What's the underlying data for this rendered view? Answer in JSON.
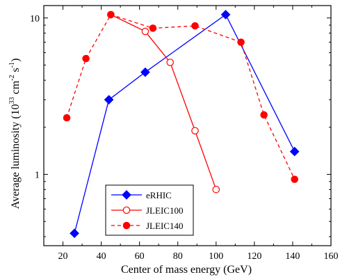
{
  "chart_data": {
    "type": "line",
    "xlabel": "Center of mass energy (GeV)",
    "ylabel": "Average luminosity (10",
    "ylabel_exp1": "33",
    "ylabel_unit": " cm",
    "ylabel_exp2": "-2",
    "ylabel_unit2": " s",
    "ylabel_exp3": "-1",
    "ylabel_close": ")",
    "xlim": [
      10,
      160
    ],
    "ylim": [
      0.35,
      12
    ],
    "yscale": "log",
    "x_ticks": [
      20,
      40,
      60,
      80,
      100,
      120,
      140,
      160
    ],
    "x_tick_labels": [
      "20",
      "40",
      "60",
      "80",
      "100",
      "120",
      "140",
      "160"
    ],
    "y_ticks": [
      1,
      10
    ],
    "y_tick_labels": [
      "1",
      "10"
    ],
    "legend_position": "bottom-left",
    "series": [
      {
        "name": "eRHIC",
        "color": "#0000ff",
        "marker": "diamond",
        "filled": true,
        "line": "solid",
        "points": [
          [
            26,
            0.42
          ],
          [
            44,
            3.0
          ],
          [
            63,
            4.5
          ],
          [
            105,
            10.5
          ],
          [
            141,
            1.4
          ]
        ]
      },
      {
        "name": "JLEIC100",
        "color": "#ff0000",
        "marker": "circle",
        "filled": false,
        "line": "solid",
        "points": [
          [
            45,
            10.5
          ],
          [
            63,
            8.2
          ],
          [
            76,
            5.2
          ],
          [
            89,
            1.9
          ],
          [
            100,
            0.8
          ]
        ]
      },
      {
        "name": "JLEIC140",
        "color": "#ff0000",
        "marker": "circle",
        "filled": true,
        "line": "dashed",
        "points": [
          [
            22,
            2.3
          ],
          [
            32,
            5.5
          ],
          [
            45,
            10.5
          ],
          [
            67,
            8.6
          ],
          [
            89,
            8.9
          ],
          [
            113,
            7.0
          ],
          [
            125,
            2.4
          ],
          [
            141,
            0.93
          ]
        ]
      }
    ]
  }
}
